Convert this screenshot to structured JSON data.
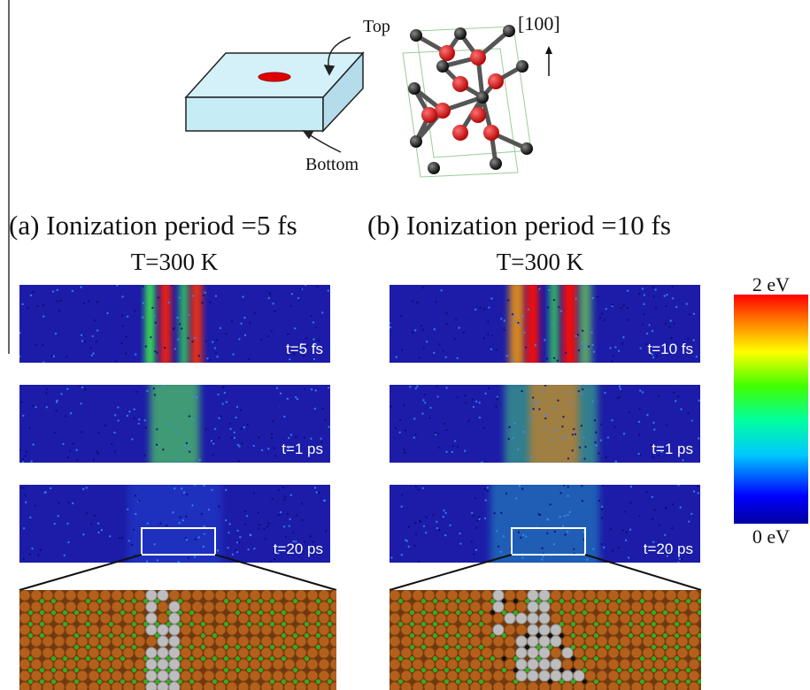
{
  "schematic": {
    "top_label": "Top",
    "bottom_label": "Bottom",
    "direction_label": "[100]"
  },
  "panels": [
    {
      "title": "(a) Ionization period =5 fs",
      "temperature": "T=300 K",
      "snapshots": [
        "t=5 fs",
        "t=1 ps",
        "t=20 ps"
      ]
    },
    {
      "title": "(b) Ionization period =10 fs",
      "temperature": "T=300 K",
      "snapshots": [
        "t=10 fs",
        "t=1 ps",
        "t=20 ps"
      ]
    }
  ],
  "colorbar": {
    "max_label": "2 eV",
    "min_label": "0 eV"
  }
}
